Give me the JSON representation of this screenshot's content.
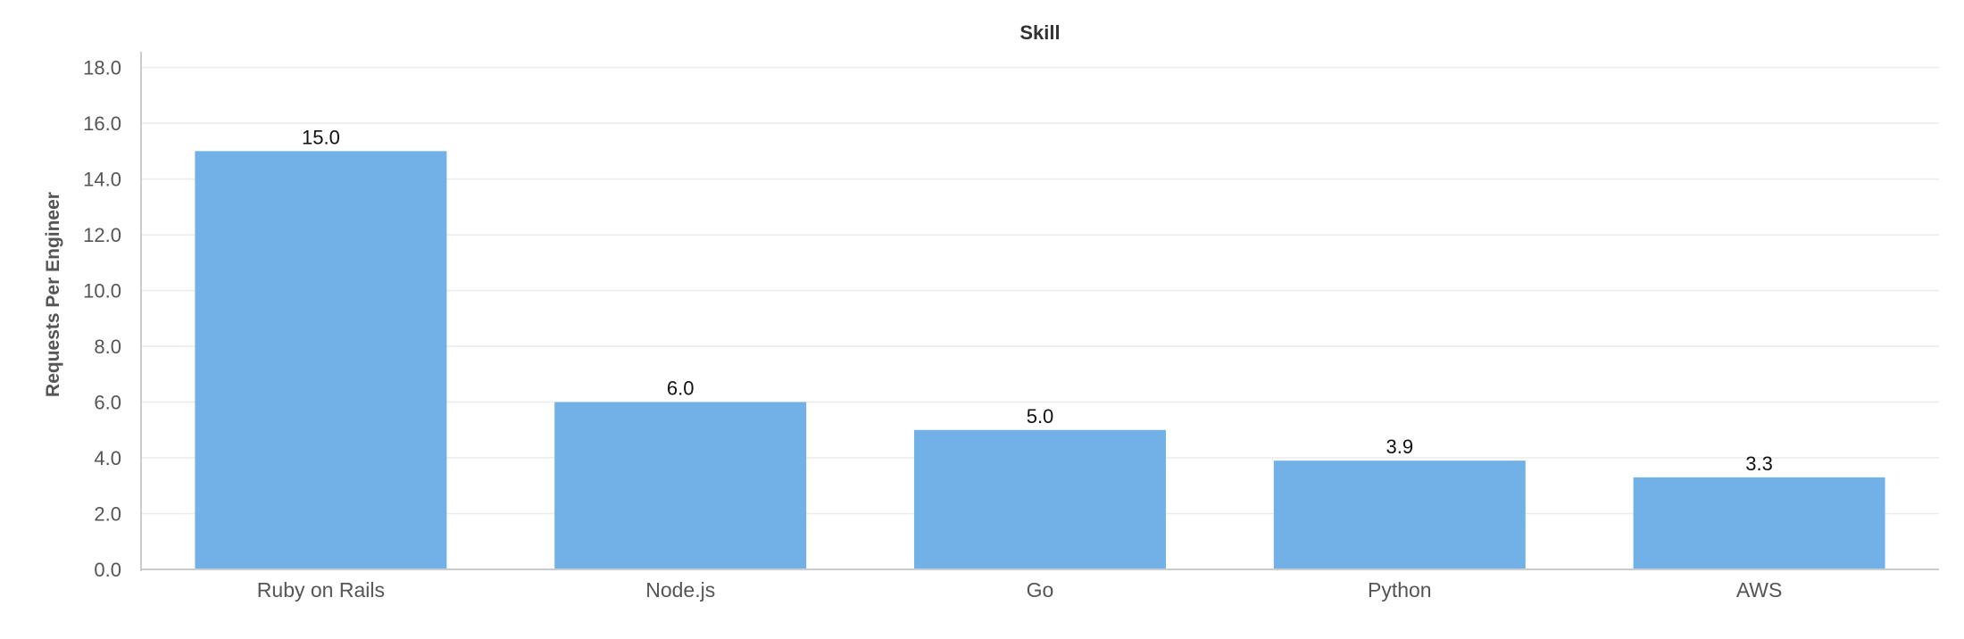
{
  "chart_data": {
    "type": "bar",
    "title": "Skill",
    "xlabel": "",
    "ylabel": "Requests Per Engineer",
    "categories": [
      "Ruby on Rails",
      "Node.js",
      "Go",
      "Python",
      "AWS"
    ],
    "values": [
      15.0,
      6.0,
      5.0,
      3.9,
      3.3
    ],
    "data_labels": [
      "15.0",
      "6.0",
      "5.0",
      "3.9",
      "3.3"
    ],
    "yticks": [
      "0.0",
      "2.0",
      "4.0",
      "6.0",
      "8.0",
      "10.0",
      "12.0",
      "14.0",
      "16.0",
      "18.0"
    ],
    "ylim": [
      0,
      18.5
    ],
    "grid": true,
    "bar_color": "#71b1e8"
  }
}
